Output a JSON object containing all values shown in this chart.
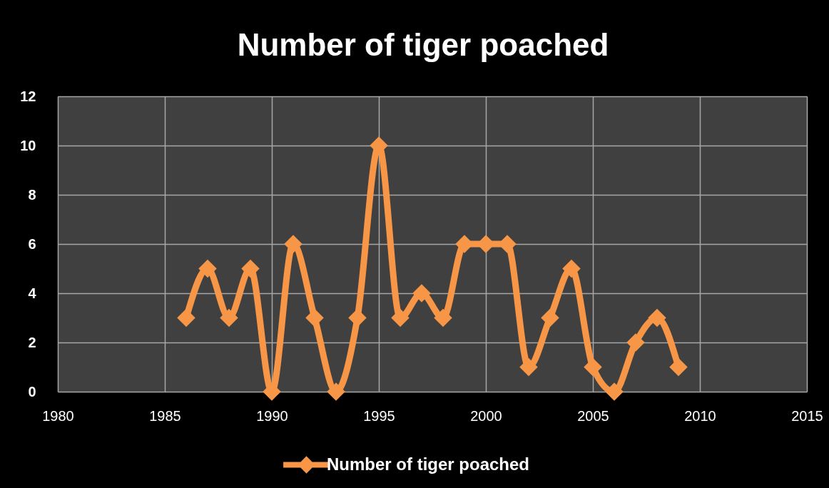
{
  "chart_data": {
    "type": "line",
    "title": "Number of tiger poached",
    "x": [
      1986,
      1987,
      1988,
      1989,
      1990,
      1991,
      1992,
      1993,
      1994,
      1995,
      1996,
      1997,
      1998,
      1999,
      2000,
      2001,
      2002,
      2003,
      2004,
      2005,
      2006,
      2007,
      2008,
      2009
    ],
    "series": [
      {
        "name": "Number of tiger poached",
        "color": "#f79646",
        "values": [
          3,
          5,
          3,
          5,
          0,
          6,
          3,
          0,
          3,
          10,
          3,
          4,
          3,
          6,
          6,
          6,
          1,
          3,
          5,
          1,
          0,
          2,
          3,
          1
        ]
      }
    ],
    "xlim": [
      1980,
      2015
    ],
    "xticks": [
      1980,
      1985,
      1990,
      1995,
      2000,
      2005,
      2010,
      2015
    ],
    "ylim": [
      0,
      12
    ],
    "yticks": [
      0,
      2,
      4,
      6,
      8,
      10,
      12
    ],
    "grid": true,
    "legend": "bottom",
    "marker": "diamond",
    "line_style": "solid"
  }
}
